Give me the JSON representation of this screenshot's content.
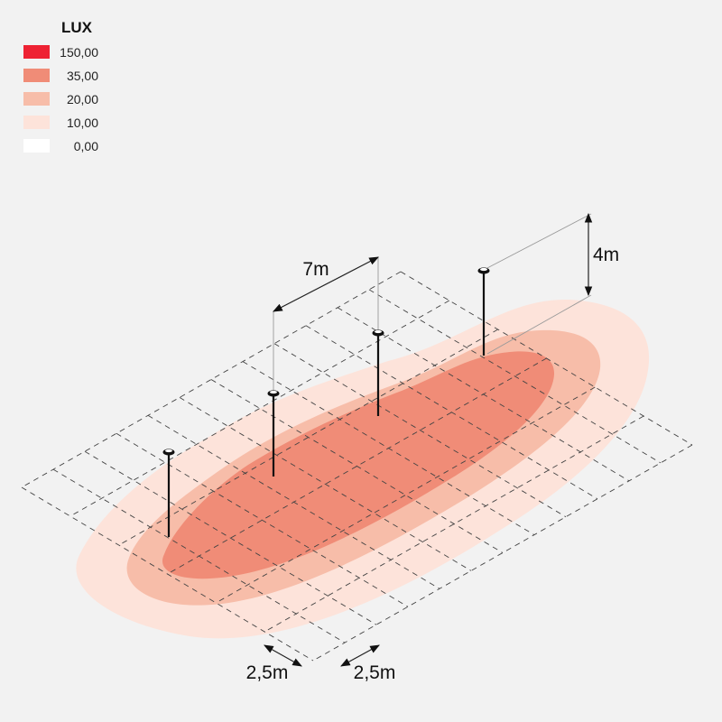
{
  "legend": {
    "title": "LUX",
    "items": [
      {
        "value": "150,00",
        "color": "#ee2233"
      },
      {
        "value": "35,00",
        "color": "#f08c77"
      },
      {
        "value": "20,00",
        "color": "#f7bda9"
      },
      {
        "value": "10,00",
        "color": "#fde3da"
      },
      {
        "value": "0,00",
        "color": "#ffffff"
      }
    ]
  },
  "zone_colors": {
    "outer": "#fde3da",
    "middle": "#f7bda9",
    "inner": "#f08c77"
  },
  "dimensions": {
    "spacing_label": "7m",
    "height_label": "4m",
    "grid_label_left": "2,5m",
    "grid_label_right": "2,5m"
  },
  "luminaires": {
    "count": 4,
    "icon": "pole-light-icon"
  }
}
